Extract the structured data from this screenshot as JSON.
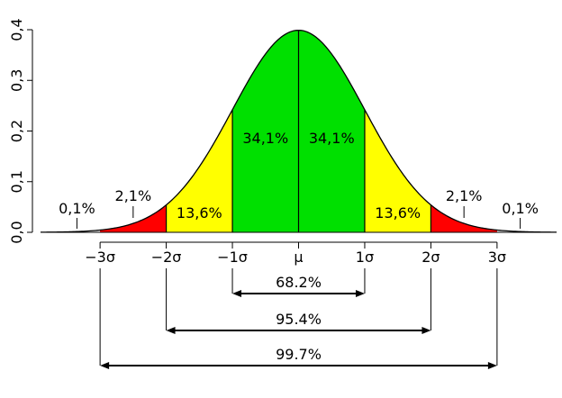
{
  "chart_data": {
    "type": "area",
    "title": "",
    "xlabel": "",
    "ylabel": "",
    "xlim": [
      -3.9,
      3.9
    ],
    "ylim": [
      0,
      0.4
    ],
    "grid": false,
    "y_ticks": [
      "0,0",
      "0,1",
      "0,2",
      "0,3",
      "0,4"
    ],
    "y_tick_values": [
      0,
      0.1,
      0.2,
      0.3,
      0.4
    ],
    "x_ticks": [
      "−3σ",
      "−2σ",
      "−1σ",
      "μ",
      "1σ",
      "2σ",
      "3σ"
    ],
    "x_tick_values": [
      -3,
      -2,
      -1,
      0,
      1,
      2,
      3
    ],
    "curve": "standard normal density",
    "regions": [
      {
        "from": -2,
        "to": -1,
        "label": "13,6%",
        "color": "#ffff00"
      },
      {
        "from": -1,
        "to": 0,
        "label": "34,1%",
        "color": "#00e000"
      },
      {
        "from": 0,
        "to": 1,
        "label": "34,1%",
        "color": "#00e000"
      },
      {
        "from": 1,
        "to": 2,
        "label": "13,6%",
        "color": "#ffff00"
      },
      {
        "from": -3,
        "to": -2,
        "label": "2,1%",
        "color": "#ff0000"
      },
      {
        "from": 2,
        "to": 3,
        "label": "2,1%",
        "color": "#ff0000"
      }
    ],
    "tail_labels": [
      {
        "x": -3.35,
        "label": "0,1%"
      },
      {
        "x": 3.35,
        "label": "0,1%"
      }
    ],
    "intervals": [
      {
        "from": -1,
        "to": 1,
        "label": "68.2%"
      },
      {
        "from": -2,
        "to": 2,
        "label": "95.4%"
      },
      {
        "from": -3,
        "to": 3,
        "label": "99.7%"
      }
    ]
  }
}
